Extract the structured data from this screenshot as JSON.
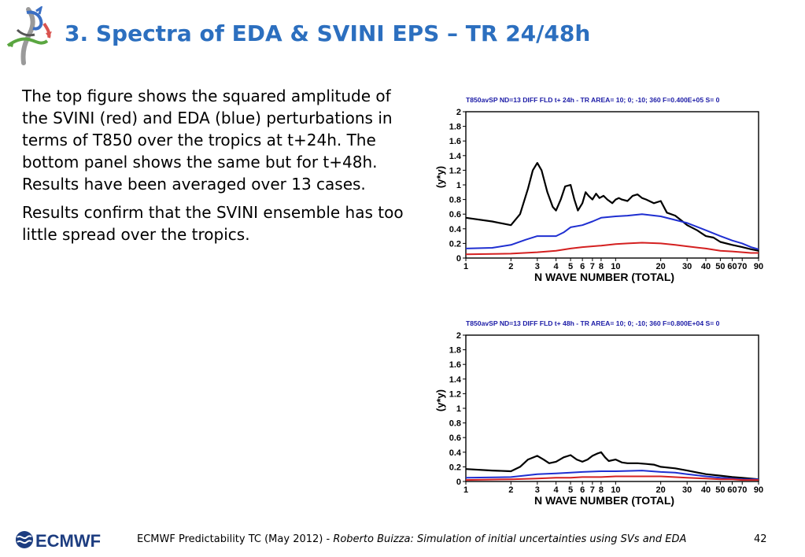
{
  "slide": {
    "title": "3. Spectra of EDA & SVINI EPS – TR 24/48h",
    "paragraphs": [
      "The top figure shows the squared amplitude of the SVINI (red) and EDA (blue) perturbations in terms of T850 over the tropics at t+24h. The bottom panel shows the same but for t+48h. Results have been averaged over 13 cases.",
      "Results confirm that the SVINI ensemble has too little spread over the tropics."
    ]
  },
  "footer": {
    "logo_text": "ECMWF",
    "prefix": "ECMWF Predictability TC (May 2012) - ",
    "citation": "Roberto Buizza: Simulation of initial uncertainties using SVs and EDA",
    "page": "42"
  },
  "colors": {
    "title": "#2c6fbf",
    "chart_header": "#1a1aa6",
    "black_series": "#000000",
    "blue_series": "#1f2fd1",
    "red_series": "#d42020"
  },
  "chart_data": [
    {
      "type": "line",
      "title": "T850avSP ND=13 DIFF FLD t+ 24h - TR AREA=  10;   0; -10; 360 F=0.400E+05 S=  0",
      "xlabel": "N WAVE NUMBER (TOTAL)",
      "ylabel": "(y*y)",
      "xscale": "log",
      "xlim": [
        1,
        90
      ],
      "ylim": [
        0,
        2
      ],
      "xticks": [
        1,
        2,
        3,
        4,
        5,
        6,
        7,
        8,
        10,
        20,
        30,
        40,
        50,
        60,
        70,
        90
      ],
      "xtick_labels": [
        "1",
        "2",
        "3",
        "4",
        "5",
        "6",
        "7",
        "8",
        "10",
        "20",
        "30",
        "40",
        "50",
        "60",
        "70",
        "90"
      ],
      "yticks": [
        0,
        0.2,
        0.4,
        0.6,
        0.8,
        1,
        1.2,
        1.4,
        1.6,
        1.8,
        2
      ],
      "ytick_labels": [
        "0",
        "0.2",
        "0.4",
        "0.6",
        "0.8",
        "1",
        "1.2",
        "1.4",
        "1.6",
        "1.8",
        "2"
      ],
      "series": [
        {
          "color": "#000000",
          "x": [
            1,
            1.5,
            2,
            2.3,
            2.6,
            2.8,
            3,
            3.2,
            3.5,
            3.8,
            4,
            4.3,
            4.6,
            5,
            5.3,
            5.6,
            6,
            6.3,
            6.6,
            7,
            7.4,
            7.8,
            8.3,
            8.8,
            9.5,
            10,
            10.5,
            11,
            12,
            13,
            14,
            15,
            16,
            18,
            20,
            22,
            25,
            28,
            30,
            35,
            40,
            45,
            50,
            60,
            70,
            80,
            90
          ],
          "y": [
            0.55,
            0.5,
            0.45,
            0.6,
            0.95,
            1.2,
            1.3,
            1.2,
            0.9,
            0.7,
            0.65,
            0.8,
            0.98,
            1.0,
            0.8,
            0.65,
            0.75,
            0.9,
            0.85,
            0.8,
            0.88,
            0.82,
            0.85,
            0.8,
            0.75,
            0.8,
            0.82,
            0.8,
            0.78,
            0.85,
            0.87,
            0.82,
            0.8,
            0.75,
            0.78,
            0.62,
            0.58,
            0.5,
            0.45,
            0.38,
            0.3,
            0.28,
            0.22,
            0.18,
            0.15,
            0.12,
            0.1
          ]
        },
        {
          "color": "#1f2fd1",
          "x": [
            1,
            1.5,
            2,
            2.5,
            3,
            3.5,
            4,
            4.5,
            5,
            6,
            7,
            8,
            10,
            12,
            15,
            20,
            25,
            30,
            40,
            50,
            60,
            70,
            80,
            90
          ],
          "y": [
            0.13,
            0.14,
            0.18,
            0.25,
            0.3,
            0.3,
            0.3,
            0.35,
            0.42,
            0.45,
            0.5,
            0.55,
            0.57,
            0.58,
            0.6,
            0.57,
            0.52,
            0.48,
            0.38,
            0.3,
            0.24,
            0.2,
            0.15,
            0.12
          ]
        },
        {
          "color": "#d42020",
          "x": [
            1,
            2,
            3,
            4,
            5,
            6,
            8,
            10,
            12,
            15,
            20,
            25,
            30,
            40,
            50,
            60,
            70,
            80,
            90
          ],
          "y": [
            0.05,
            0.06,
            0.08,
            0.1,
            0.13,
            0.15,
            0.17,
            0.19,
            0.2,
            0.21,
            0.2,
            0.18,
            0.16,
            0.13,
            0.1,
            0.09,
            0.08,
            0.07,
            0.07
          ]
        }
      ]
    },
    {
      "type": "line",
      "title": "T850avSP ND=13 DIFF FLD t+ 48h - TR AREA=  10;   0; -10; 360 F=0.800E+04 S=  0",
      "xlabel": "N WAVE NUMBER (TOTAL)",
      "ylabel": "(y*y)",
      "xscale": "log",
      "xlim": [
        1,
        90
      ],
      "ylim": [
        0,
        2
      ],
      "xticks": [
        1,
        2,
        3,
        4,
        5,
        6,
        7,
        8,
        10,
        20,
        30,
        40,
        50,
        60,
        70,
        90
      ],
      "xtick_labels": [
        "1",
        "2",
        "3",
        "4",
        "5",
        "6",
        "7",
        "8",
        "10",
        "20",
        "30",
        "40",
        "50",
        "60",
        "70",
        "90"
      ],
      "yticks": [
        0,
        0.2,
        0.4,
        0.6,
        0.8,
        1,
        1.2,
        1.4,
        1.6,
        1.8,
        2
      ],
      "ytick_labels": [
        "0",
        "0.2",
        "0.4",
        "0.6",
        "0.8",
        "1",
        "1.2",
        "1.4",
        "1.6",
        "1.8",
        "2"
      ],
      "series": [
        {
          "color": "#000000",
          "x": [
            1,
            1.5,
            2,
            2.3,
            2.6,
            3,
            3.3,
            3.6,
            4,
            4.5,
            5,
            5.5,
            6,
            6.5,
            7,
            7.5,
            8,
            8.5,
            9,
            10,
            11,
            12,
            14,
            16,
            18,
            20,
            25,
            30,
            40,
            50,
            60,
            70,
            80,
            90
          ],
          "y": [
            0.17,
            0.15,
            0.14,
            0.2,
            0.3,
            0.35,
            0.3,
            0.25,
            0.27,
            0.33,
            0.36,
            0.3,
            0.27,
            0.3,
            0.35,
            0.38,
            0.4,
            0.33,
            0.28,
            0.3,
            0.26,
            0.25,
            0.25,
            0.24,
            0.23,
            0.2,
            0.18,
            0.15,
            0.1,
            0.08,
            0.06,
            0.05,
            0.04,
            0.03
          ]
        },
        {
          "color": "#1f2fd1",
          "x": [
            1,
            2,
            3,
            4,
            5,
            6,
            8,
            10,
            15,
            20,
            25,
            30,
            40,
            50,
            60,
            70,
            80,
            90
          ],
          "y": [
            0.05,
            0.06,
            0.1,
            0.11,
            0.12,
            0.13,
            0.14,
            0.14,
            0.15,
            0.13,
            0.12,
            0.1,
            0.07,
            0.05,
            0.04,
            0.03,
            0.03,
            0.03
          ]
        },
        {
          "color": "#d42020",
          "x": [
            1,
            2,
            3,
            4,
            5,
            6,
            8,
            10,
            15,
            20,
            30,
            40,
            50,
            60,
            70,
            80,
            90
          ],
          "y": [
            0.02,
            0.03,
            0.04,
            0.05,
            0.05,
            0.06,
            0.06,
            0.07,
            0.07,
            0.07,
            0.05,
            0.04,
            0.03,
            0.03,
            0.02,
            0.02,
            0.02
          ]
        }
      ]
    }
  ]
}
